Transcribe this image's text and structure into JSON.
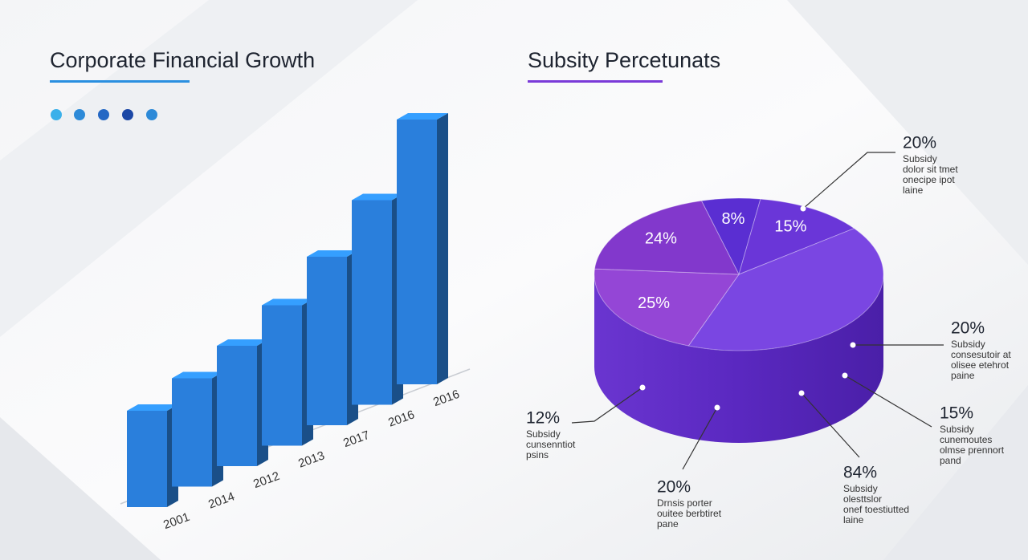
{
  "chart_data": [
    {
      "type": "bar3d",
      "title": "Corporate Financial Growth",
      "categories": [
        "2001",
        "2014",
        "2012",
        "2013",
        "2017",
        "2016",
        "2016"
      ],
      "values": [
        120,
        135,
        150,
        175,
        210,
        255,
        330
      ],
      "color": "#2a7fdc"
    },
    {
      "type": "pie3d",
      "title": "Subsity Percetunats",
      "values": [
        8,
        15,
        50,
        25,
        24
      ],
      "value_labels": [
        "8%",
        "15%",
        null,
        "25%",
        "24%"
      ],
      "colors": [
        "#5a2ed2",
        "#6a36d8",
        "#7a46e2",
        "#9446d6",
        "#8238cc"
      ],
      "annotations": [
        {
          "label": "20%",
          "lines": [
            "Subsidy",
            "dolor sit tmet",
            "onecipe ipot",
            "laine"
          ]
        },
        {
          "label": "20%",
          "lines": [
            "Subsidy",
            "consesutoir at",
            "olisee etehrot",
            "paine"
          ]
        },
        {
          "label": "15%",
          "lines": [
            "Subsidy",
            "cunemoutes",
            "olmse prennort",
            "pand"
          ]
        },
        {
          "label": "84%",
          "lines": [
            "Subsidy",
            "olesttslor",
            "onef toestiutted",
            "laine"
          ]
        },
        {
          "label": "20%",
          "lines": [
            "Drnsis porter",
            "ouitee berbtiret",
            "pane"
          ]
        },
        {
          "label": "12%",
          "lines": [
            "Subsidy",
            "cunsenntiot",
            "psins"
          ]
        }
      ]
    }
  ]
}
